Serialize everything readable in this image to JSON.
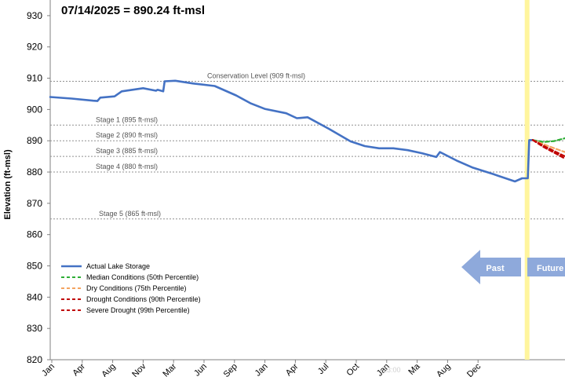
{
  "chart_data": {
    "type": "line",
    "title": "07/14/2025 = 890.24 ft-msl",
    "xlabel": "",
    "ylabel": "Elevation (ft-msl)",
    "ylim": [
      820,
      935
    ],
    "yticks": [
      820,
      830,
      840,
      850,
      860,
      870,
      880,
      890,
      900,
      910,
      920,
      930
    ],
    "xlim": [
      0,
      1000
    ],
    "xtick_labels": [
      "Jan",
      "Apr",
      "Aug",
      "Nov",
      "Mar",
      "Jun",
      "Sep",
      "Jan",
      "Apr",
      "Jul",
      "Oct",
      "Jan",
      "Ma",
      "Aug",
      "Dec"
    ],
    "watermark": "13:00",
    "grid": "none",
    "reference_lines": [
      {
        "label": "Conservation Level (909 ft-msl)",
        "y": 909
      },
      {
        "label": "Stage 1 (895 ft-msl)",
        "y": 895
      },
      {
        "label": "Stage 2 (890 ft-msl)",
        "y": 890
      },
      {
        "label": "Stage 3 (885 ft-msl)",
        "y": 885
      },
      {
        "label": "Stage 4 (880 ft-msl)",
        "y": 880
      },
      {
        "label": "Stage 5 (865 ft-msl)",
        "y": 865
      }
    ],
    "series": [
      {
        "name": "Actual Lake Storage",
        "color": "#4472C4",
        "style": "solid",
        "x": [
          0,
          30,
          60,
          66,
          70,
          90,
          100,
          130,
          148,
          150,
          158,
          160,
          175,
          200,
          230,
          260,
          280,
          300,
          330,
          345,
          360,
          390,
          420,
          440,
          460,
          480,
          500,
          520,
          540,
          545,
          550,
          570,
          590,
          620,
          650,
          660,
          662,
          668,
          670,
          675
        ],
        "y": [
          904,
          903.5,
          902.8,
          902.7,
          903.8,
          904.2,
          905.8,
          906.8,
          906,
          906.3,
          905.8,
          909,
          909.2,
          908.3,
          907.5,
          904.5,
          902,
          900.2,
          898.8,
          897.2,
          897.5,
          893.8,
          889.8,
          888.3,
          887.6,
          887.6,
          887,
          886,
          884.8,
          886.4,
          885.8,
          883.5,
          881.5,
          879.3,
          877,
          878,
          878,
          878,
          890.2,
          890.24
        ]
      },
      {
        "name": "Median Conditions (50th Percentile)",
        "color": "#2EAE36",
        "style": "dashed",
        "x": [
          675,
          690,
          705,
          720
        ],
        "y": [
          890.24,
          889.6,
          889.9,
          890.8
        ]
      },
      {
        "name": "Dry Conditions (75th Percentile)",
        "color": "#F4A460",
        "style": "dashed",
        "x": [
          675,
          690,
          705,
          720
        ],
        "y": [
          890.24,
          888.9,
          887.6,
          886.4
        ]
      },
      {
        "name": "Drought Conditions (90th Percentile)",
        "color": "#C00000",
        "style": "dashed",
        "x": [
          675,
          690,
          705,
          720
        ],
        "y": [
          890.24,
          888.4,
          886.7,
          885.0
        ]
      },
      {
        "name": "Severe Drought (99th Percentile)",
        "color": "#C00000",
        "style": "dashed",
        "x": [
          675,
          690,
          705,
          720
        ],
        "y": [
          890.24,
          888.0,
          886.2,
          884.3
        ]
      }
    ],
    "current_marker": {
      "x": 667,
      "color": "#FFF59D"
    },
    "annotations": {
      "past": "Past",
      "future": "Future",
      "arrow_color": "#8EA9DB"
    },
    "legend_position": "bottom-left"
  }
}
